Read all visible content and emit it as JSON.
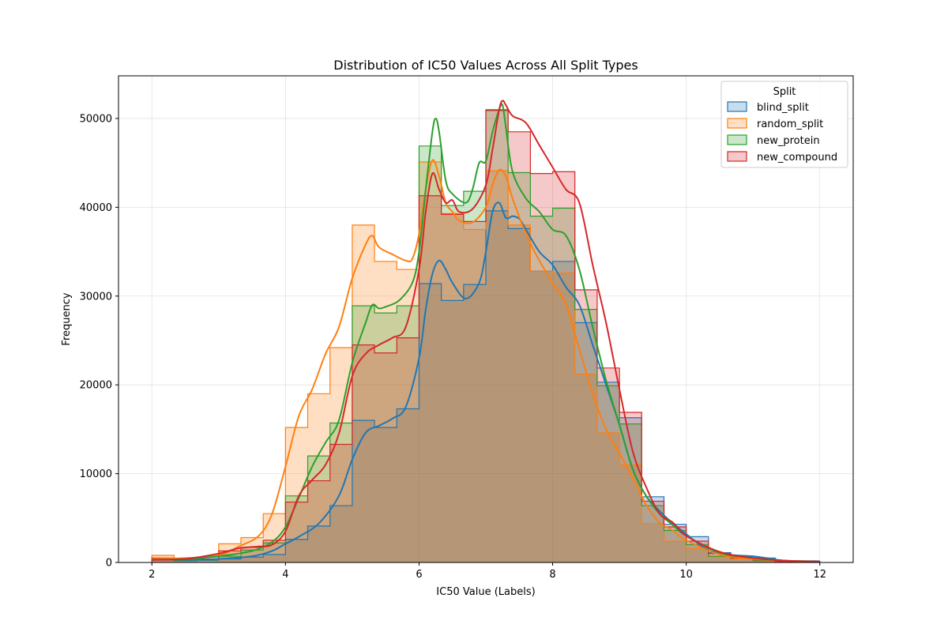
{
  "chart_data": {
    "type": "histogram",
    "title": "Distribution of IC50 Values Across All Split Types",
    "xlabel": "IC50 Value (Labels)",
    "ylabel": "Frequency",
    "xlim": [
      1.5,
      12.5
    ],
    "ylim": [
      0,
      54800
    ],
    "xticks": [
      2,
      4,
      6,
      8,
      10,
      12
    ],
    "yticks": [
      0,
      10000,
      20000,
      30000,
      40000,
      50000
    ],
    "grid": true,
    "legend": {
      "title": "Split",
      "placement": "top-right"
    },
    "bin_edges": [
      2.0,
      2.333,
      2.667,
      3.0,
      3.333,
      3.667,
      4.0,
      4.333,
      4.667,
      5.0,
      5.333,
      5.667,
      6.0,
      6.333,
      6.667,
      7.0,
      7.333,
      7.667,
      8.0,
      8.333,
      8.667,
      9.0,
      9.333,
      9.667,
      10.0,
      10.333,
      10.667,
      11.0,
      11.333,
      11.667,
      12.0
    ],
    "series": [
      {
        "name": "blind_split",
        "color": "#1f77b4",
        "counts": [
          300,
          200,
          250,
          400,
          600,
          900,
          2600,
          4100,
          6400,
          16000,
          15200,
          17300,
          31400,
          29500,
          31300,
          39600,
          37600,
          32800,
          33900,
          27000,
          20300,
          16300,
          7400,
          4300,
          2900,
          1100,
          600,
          500,
          150,
          100
        ],
        "kde_x": [
          2.0,
          2.5,
          3.0,
          3.5,
          3.8,
          4.0,
          4.2,
          4.5,
          4.8,
          5.0,
          5.2,
          5.4,
          5.6,
          5.8,
          6.0,
          6.1,
          6.2,
          6.3,
          6.4,
          6.5,
          6.7,
          6.9,
          7.0,
          7.1,
          7.2,
          7.3,
          7.4,
          7.5,
          7.6,
          7.8,
          8.0,
          8.2,
          8.4,
          8.6,
          8.8,
          9.0,
          9.2,
          9.4,
          9.6,
          9.8,
          10.0,
          10.3,
          10.6,
          11.0,
          11.2,
          11.5,
          12.0
        ],
        "kde_y": [
          400,
          300,
          400,
          700,
          1300,
          2100,
          2900,
          4400,
          7500,
          11600,
          14600,
          15400,
          16200,
          17500,
          23000,
          28500,
          32500,
          34000,
          33000,
          31500,
          29700,
          31500,
          35000,
          39500,
          40500,
          38800,
          39000,
          38700,
          37500,
          35000,
          33500,
          31000,
          29000,
          24500,
          20000,
          15500,
          10500,
          7500,
          5800,
          4400,
          3200,
          1500,
          900,
          700,
          500,
          200,
          150
        ]
      },
      {
        "name": "random_split",
        "color": "#ff7f0e",
        "counts": [
          800,
          300,
          600,
          2100,
          2800,
          5500,
          15200,
          19000,
          24200,
          38000,
          33900,
          33000,
          45100,
          39300,
          37500,
          44100,
          38000,
          32800,
          32600,
          21200,
          14600,
          11000,
          4400,
          2400,
          1600,
          600,
          400,
          200,
          100,
          50
        ],
        "kde_x": [
          2.0,
          2.5,
          3.0,
          3.3,
          3.6,
          3.8,
          4.0,
          4.2,
          4.4,
          4.6,
          4.8,
          5.0,
          5.2,
          5.3,
          5.4,
          5.6,
          5.8,
          5.9,
          6.0,
          6.1,
          6.2,
          6.3,
          6.4,
          6.5,
          6.6,
          6.8,
          7.0,
          7.1,
          7.2,
          7.3,
          7.4,
          7.6,
          7.8,
          8.0,
          8.2,
          8.4,
          8.6,
          8.8,
          9.0,
          9.2,
          9.4,
          9.6,
          9.8,
          10.0,
          10.5,
          11.0,
          11.5,
          12.0
        ],
        "kde_y": [
          400,
          500,
          800,
          1800,
          3000,
          5500,
          10800,
          16500,
          19500,
          23500,
          26500,
          32000,
          35800,
          36800,
          35500,
          34700,
          34000,
          34200,
          37000,
          42000,
          45300,
          43500,
          40500,
          39500,
          38500,
          38300,
          40000,
          42500,
          44200,
          43500,
          41000,
          37000,
          34000,
          31500,
          29000,
          24000,
          19000,
          15000,
          12300,
          9500,
          6500,
          4500,
          3600,
          2500,
          900,
          400,
          200,
          100
        ]
      },
      {
        "name": "new_protein",
        "color": "#2ca02c",
        "counts": [
          400,
          200,
          300,
          700,
          1400,
          2200,
          7500,
          12000,
          15700,
          28900,
          28100,
          28900,
          46900,
          40200,
          41800,
          51000,
          43900,
          39000,
          39900,
          28500,
          19900,
          15600,
          6400,
          3600,
          2000,
          700,
          500,
          200,
          100,
          50
        ],
        "kde_x": [
          2.0,
          2.5,
          3.0,
          3.5,
          3.8,
          4.0,
          4.2,
          4.4,
          4.6,
          4.8,
          5.0,
          5.2,
          5.3,
          5.4,
          5.5,
          5.7,
          5.9,
          6.0,
          6.1,
          6.2,
          6.25,
          6.3,
          6.4,
          6.5,
          6.7,
          6.8,
          6.9,
          7.0,
          7.1,
          7.2,
          7.25,
          7.3,
          7.4,
          7.6,
          7.8,
          8.0,
          8.2,
          8.4,
          8.6,
          8.8,
          9.0,
          9.2,
          9.4,
          9.6,
          9.8,
          10.0,
          10.5,
          11.0,
          11.5,
          12.0
        ],
        "kde_y": [
          300,
          400,
          700,
          1300,
          2300,
          4000,
          7300,
          10800,
          13500,
          16000,
          22500,
          27000,
          29000,
          28600,
          28800,
          29500,
          31500,
          35000,
          42000,
          48500,
          50000,
          48500,
          43000,
          41500,
          40500,
          42000,
          45000,
          45200,
          48500,
          51000,
          51500,
          49000,
          44000,
          41000,
          39500,
          37500,
          36800,
          33000,
          26500,
          20500,
          15500,
          10500,
          7500,
          5500,
          4200,
          3000,
          1100,
          500,
          200,
          100
        ]
      },
      {
        "name": "new_compound",
        "color": "#d62728",
        "counts": [
          500,
          300,
          400,
          1300,
          1700,
          2500,
          6800,
          9200,
          13300,
          24500,
          23600,
          25300,
          41300,
          39200,
          38400,
          50900,
          48500,
          43800,
          44000,
          30700,
          21900,
          16900,
          6900,
          4000,
          2400,
          1000,
          500,
          300,
          100,
          50
        ],
        "kde_x": [
          2.0,
          2.5,
          3.0,
          3.3,
          3.6,
          3.8,
          4.0,
          4.2,
          4.4,
          4.6,
          4.8,
          5.0,
          5.2,
          5.4,
          5.6,
          5.8,
          6.0,
          6.1,
          6.2,
          6.3,
          6.4,
          6.5,
          6.6,
          6.8,
          7.0,
          7.1,
          7.2,
          7.25,
          7.3,
          7.4,
          7.6,
          7.8,
          8.0,
          8.2,
          8.4,
          8.6,
          8.8,
          9.0,
          9.2,
          9.4,
          9.6,
          9.8,
          10.0,
          10.5,
          11.0,
          11.5,
          12.0
        ],
        "kde_y": [
          300,
          400,
          1000,
          1600,
          1800,
          2000,
          3500,
          7500,
          9300,
          11000,
          14500,
          21000,
          23500,
          24500,
          25300,
          26500,
          33000,
          39500,
          43800,
          42000,
          40500,
          40800,
          39500,
          39800,
          42500,
          46500,
          51000,
          52000,
          51500,
          50300,
          49500,
          47000,
          44500,
          42000,
          40500,
          33500,
          27000,
          19500,
          12500,
          8500,
          5500,
          4500,
          3000,
          1200,
          500,
          200,
          100
        ]
      }
    ]
  }
}
